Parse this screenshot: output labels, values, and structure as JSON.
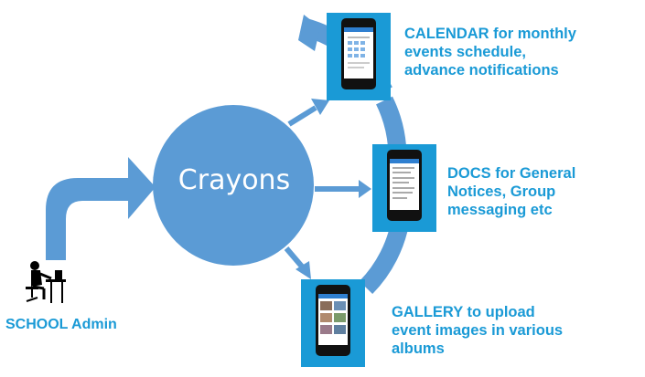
{
  "hub": {
    "label": "Crayons"
  },
  "admin": {
    "label": "SCHOOL Admin",
    "icon": "person-at-desk-icon"
  },
  "modules": [
    {
      "id": "calendar",
      "lines": [
        "CALENDAR for monthly",
        "events schedule,",
        "advance notifications"
      ],
      "icon": "smartphone-calendar-screen-icon"
    },
    {
      "id": "docs",
      "lines": [
        "DOCS for General",
        "Notices, Group",
        "messaging etc"
      ],
      "icon": "smartphone-docs-screen-icon"
    },
    {
      "id": "gallery",
      "lines": [
        "GALLERY to upload",
        "event images in various",
        "albums"
      ],
      "icon": "smartphone-gallery-screen-icon"
    }
  ],
  "colors": {
    "accent": "#1a9ad6",
    "circle": "#5b9bd5",
    "arrow": "#5b9bd5",
    "panel": "#1a9ad6"
  }
}
